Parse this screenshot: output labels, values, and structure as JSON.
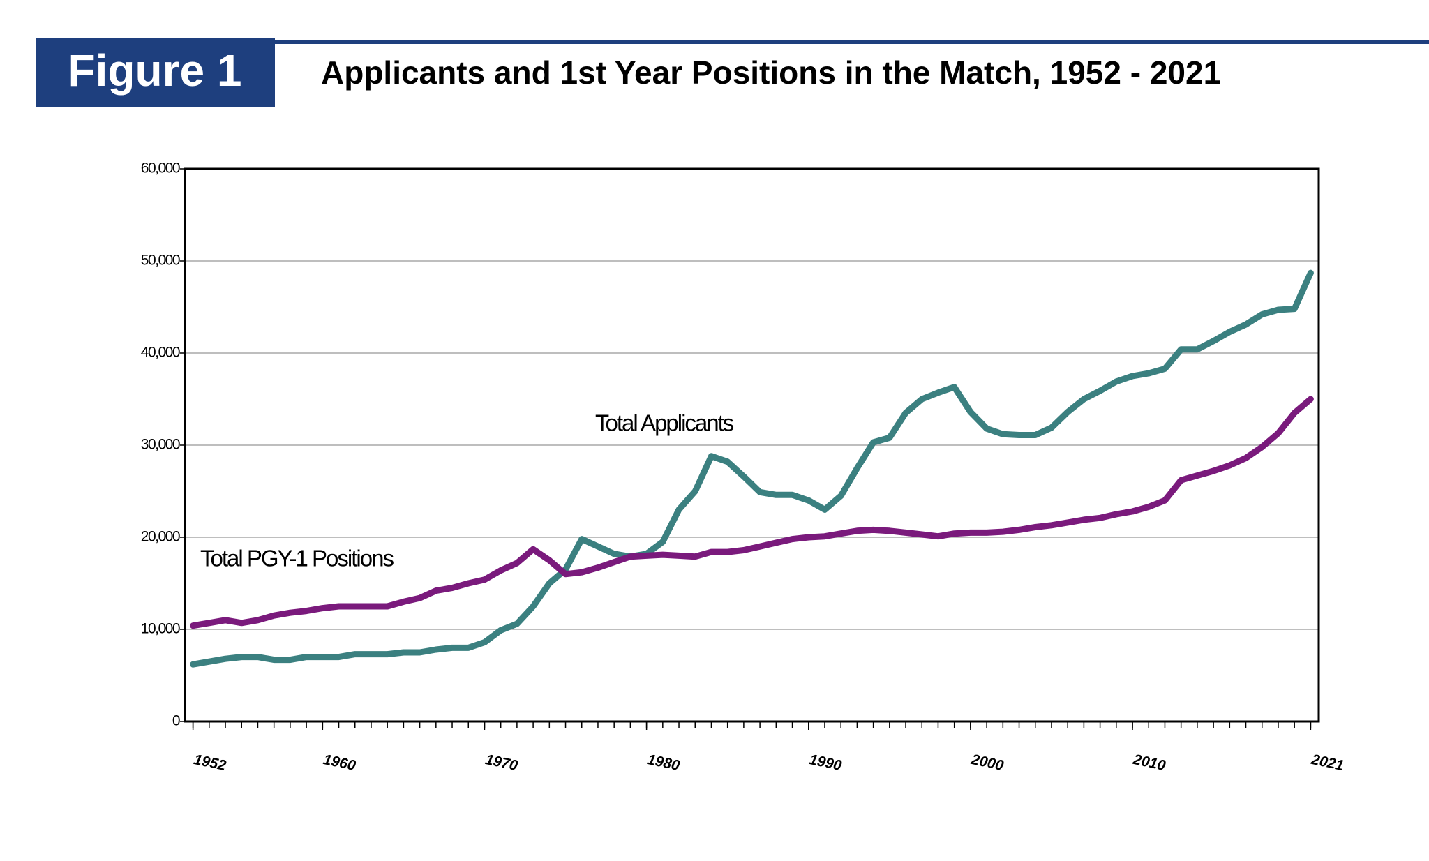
{
  "chart_data": {
    "type": "line",
    "figure_label": "Figure 1",
    "title": "Applicants and 1st Year Positions in the Match, 1952 - 2021",
    "x": [
      1952,
      1953,
      1954,
      1955,
      1956,
      1957,
      1958,
      1959,
      1960,
      1961,
      1962,
      1963,
      1964,
      1965,
      1966,
      1967,
      1968,
      1969,
      1970,
      1971,
      1972,
      1973,
      1974,
      1975,
      1976,
      1977,
      1978,
      1979,
      1980,
      1981,
      1982,
      1983,
      1984,
      1985,
      1986,
      1987,
      1988,
      1989,
      1990,
      1991,
      1992,
      1993,
      1994,
      1995,
      1996,
      1997,
      1998,
      1999,
      2000,
      2001,
      2002,
      2003,
      2004,
      2005,
      2006,
      2007,
      2008,
      2009,
      2010,
      2011,
      2012,
      2013,
      2014,
      2015,
      2016,
      2017,
      2018,
      2019,
      2020,
      2021
    ],
    "series": [
      {
        "name": "Total Applicants",
        "color": "#3b8080",
        "values": [
          6200,
          6500,
          6800,
          7000,
          7000,
          6700,
          6700,
          7000,
          7000,
          7000,
          7300,
          7300,
          7300,
          7500,
          7500,
          7800,
          8000,
          8000,
          8600,
          9900,
          10600,
          12500,
          15000,
          16500,
          19800,
          19000,
          18200,
          17900,
          18200,
          19500,
          23000,
          25000,
          28800,
          28200,
          26600,
          24900,
          24600,
          24600,
          24000,
          23000,
          24500,
          27500,
          30300,
          30800,
          33500,
          35000,
          35700,
          36300,
          33600,
          31800,
          31200,
          31100,
          31100,
          31900,
          33600,
          35000,
          35900,
          36900,
          37500,
          37800,
          38300,
          40400,
          40400,
          41300,
          42300,
          43100,
          44200,
          44700,
          44800,
          48700
        ]
      },
      {
        "name": "Total PGY-1 Positions",
        "color": "#7a1a7c",
        "values": [
          10400,
          10700,
          11000,
          10700,
          11000,
          11500,
          11800,
          12000,
          12300,
          12500,
          12500,
          12500,
          12500,
          13000,
          13400,
          14200,
          14500,
          15000,
          15400,
          16400,
          17200,
          18700,
          17500,
          16000,
          16200,
          16700,
          17300,
          17900,
          18000,
          18100,
          18000,
          17900,
          18400,
          18400,
          18600,
          19000,
          19400,
          19800,
          20000,
          20100,
          20400,
          20700,
          20800,
          20700,
          20500,
          20300,
          20100,
          20400,
          20500,
          20500,
          20600,
          20800,
          21100,
          21300,
          21600,
          21900,
          22100,
          22500,
          22800,
          23300,
          24000,
          26200,
          26700,
          27200,
          27800,
          28600,
          29800,
          31300,
          33500,
          35000
        ]
      }
    ],
    "xlim": [
      1951.5,
      2021.5
    ],
    "xticks": [
      1952,
      1960,
      1970,
      1980,
      1990,
      2000,
      2010,
      2021
    ],
    "ylim": [
      0,
      60000
    ],
    "yticks": [
      0,
      {
        "value": 10000,
        "label": "10,000"
      },
      {
        "value": 20000,
        "label": "20,000"
      },
      {
        "value": 30000,
        "label": "30,000"
      },
      {
        "value": 40000,
        "label": "40,000"
      },
      {
        "value": 50000,
        "label": "50,000"
      },
      {
        "value": 60000,
        "label": "60,000"
      }
    ],
    "grid": true
  }
}
